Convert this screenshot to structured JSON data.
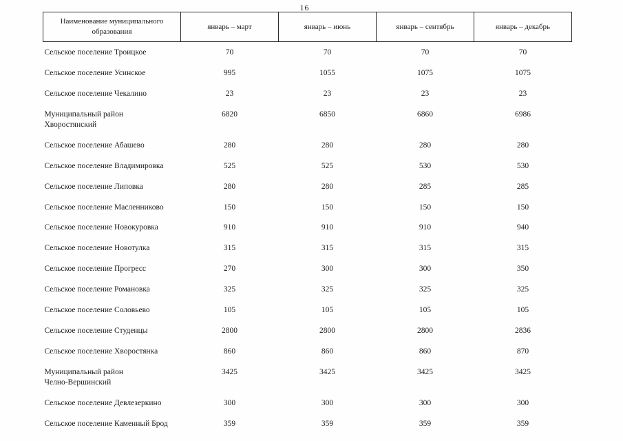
{
  "page": {
    "number": "16"
  },
  "table": {
    "headers": [
      "Наименование муниципального образования",
      "январь – март",
      "январь – июнь",
      "январь – сентябрь",
      "январь – декабрь"
    ],
    "rows": [
      {
        "name": "Сельское поселение Троицкое",
        "values": [
          "70",
          "70",
          "70",
          "70"
        ]
      },
      {
        "name": "Сельское поселение Усинское",
        "values": [
          "995",
          "1055",
          "1075",
          "1075"
        ]
      },
      {
        "name": "Сельское поселение Чекалино",
        "values": [
          "23",
          "23",
          "23",
          "23"
        ]
      },
      {
        "name": "Муниципальный район Хворостянский",
        "values": [
          "6820",
          "6850",
          "6860",
          "6986"
        ]
      },
      {
        "name": "Сельское поселение Абашево",
        "values": [
          "280",
          "280",
          "280",
          "280"
        ]
      },
      {
        "name": "Сельское поселение Владимировка",
        "values": [
          "525",
          "525",
          "530",
          "530"
        ]
      },
      {
        "name": "Сельское поселение Липовка",
        "values": [
          "280",
          "280",
          "285",
          "285"
        ]
      },
      {
        "name": "Сельское поселение Масленниково",
        "values": [
          "150",
          "150",
          "150",
          "150"
        ]
      },
      {
        "name": "Сельское поселение Новокуровка",
        "values": [
          "910",
          "910",
          "910",
          "940"
        ]
      },
      {
        "name": "Сельское поселение Новотулка",
        "values": [
          "315",
          "315",
          "315",
          "315"
        ]
      },
      {
        "name": "Сельское поселение Прогресс",
        "values": [
          "270",
          "300",
          "300",
          "350"
        ]
      },
      {
        "name": "Сельское поселение Романовка",
        "values": [
          "325",
          "325",
          "325",
          "325"
        ]
      },
      {
        "name": "Сельское поселение Соловьево",
        "values": [
          "105",
          "105",
          "105",
          "105"
        ]
      },
      {
        "name": "Сельское поселение Студенцы",
        "values": [
          "2800",
          "2800",
          "2800",
          "2836"
        ]
      },
      {
        "name": "Сельское поселение Хворостянка",
        "values": [
          "860",
          "860",
          "860",
          "870"
        ]
      },
      {
        "name": "Муниципальный район\nЧелно-Вершинский",
        "values": [
          "3425",
          "3425",
          "3425",
          "3425"
        ]
      },
      {
        "name": "Сельское поселение Девлезеркино",
        "values": [
          "300",
          "300",
          "300",
          "300"
        ]
      },
      {
        "name": "Сельское поселение Каменный Брод",
        "values": [
          "359",
          "359",
          "359",
          "359"
        ]
      }
    ]
  }
}
